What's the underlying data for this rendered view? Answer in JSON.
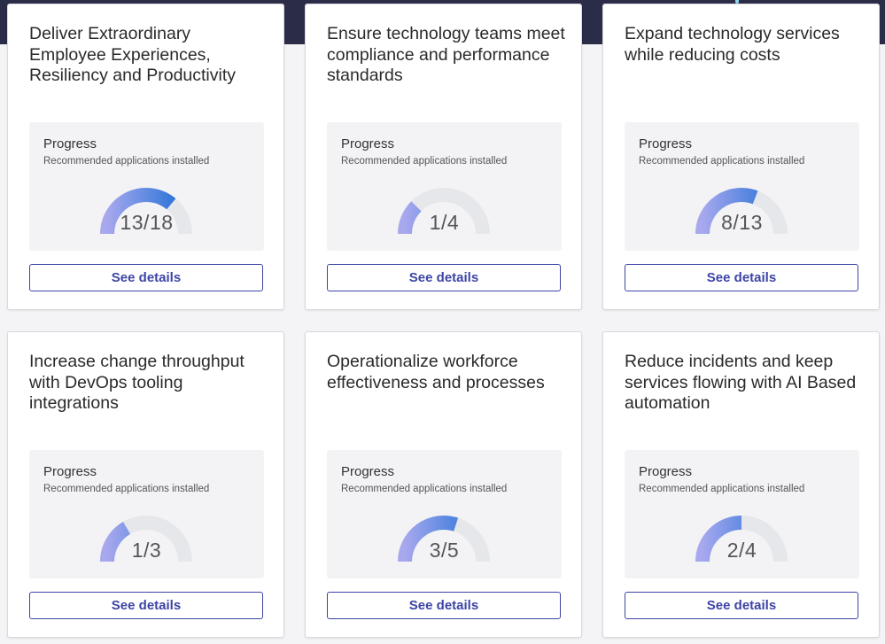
{
  "colors": {
    "banner": "#2b2c48",
    "accent": "#3d44a6",
    "gauge_track": "#e6e7ea",
    "gauge_start": "#a7a8ee",
    "gauge_end": "#1f6fd6"
  },
  "cards": [
    {
      "title": "Deliver Extraordinary Employee Experiences, Resiliency and Productivity",
      "progress_label": "Progress",
      "progress_sub": "Recommended applications installed",
      "installed": 13,
      "total": 18,
      "value_text": "13/18",
      "button_label": "See details"
    },
    {
      "title": "Ensure technology teams meet compliance and performance standards",
      "progress_label": "Progress",
      "progress_sub": "Recommended applications installed",
      "installed": 1,
      "total": 4,
      "value_text": "1/4",
      "button_label": "See details"
    },
    {
      "title": "Expand technology services while reducing costs",
      "progress_label": "Progress",
      "progress_sub": "Recommended applications installed",
      "installed": 8,
      "total": 13,
      "value_text": "8/13",
      "button_label": "See details"
    },
    {
      "title": "Increase change throughput with DevOps tooling integrations",
      "progress_label": "Progress",
      "progress_sub": "Recommended applications installed",
      "installed": 1,
      "total": 3,
      "value_text": "1/3",
      "button_label": "See details"
    },
    {
      "title": "Operationalize workforce effectiveness and processes",
      "progress_label": "Progress",
      "progress_sub": "Recommended applications installed",
      "installed": 3,
      "total": 5,
      "value_text": "3/5",
      "button_label": "See details"
    },
    {
      "title": "Reduce incidents and keep services flowing with AI Based automation",
      "progress_label": "Progress",
      "progress_sub": "Recommended applications installed",
      "installed": 2,
      "total": 4,
      "value_text": "2/4",
      "button_label": "See details"
    }
  ]
}
